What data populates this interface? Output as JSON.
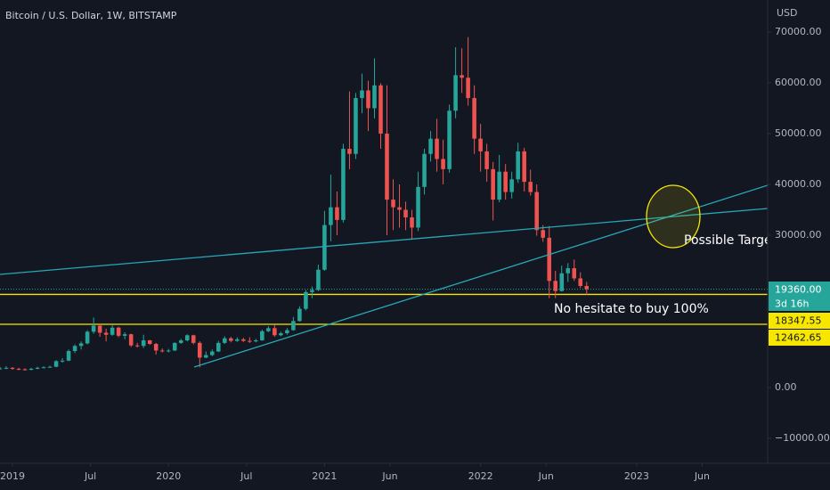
{
  "chart_data": {
    "type": "candlestick",
    "title": "Bitcoin / U.S. Dollar, 1W, BITSTAMP",
    "currency": "USD",
    "up_color": "#26a69a",
    "down_color": "#ef5350",
    "xlim": [
      2018.92,
      2023.84
    ],
    "ylim": [
      -14900,
      76300
    ],
    "xticks": [
      {
        "value": 2019,
        "label": "2019"
      },
      {
        "value": 2019.5,
        "label": "Jul"
      },
      {
        "value": 2020,
        "label": "2020"
      },
      {
        "value": 2020.5,
        "label": "Jul"
      },
      {
        "value": 2021,
        "label": "2021"
      },
      {
        "value": 2021.42,
        "label": "Jun"
      },
      {
        "value": 2022,
        "label": "2022"
      },
      {
        "value": 2022.42,
        "label": "Jun"
      },
      {
        "value": 2023,
        "label": "2023"
      },
      {
        "value": 2023.42,
        "label": "Jun"
      }
    ],
    "yticks": [
      {
        "value": -10000,
        "label": "−10000.00"
      },
      {
        "value": 0,
        "label": "0.00"
      },
      {
        "value": 30000,
        "label": "30000.00"
      },
      {
        "value": 40000,
        "label": "40000.00"
      },
      {
        "value": 50000,
        "label": "50000.00"
      },
      {
        "value": 60000,
        "label": "60000.00"
      },
      {
        "value": 70000,
        "label": "70000.00"
      }
    ],
    "x": [
      2018.92,
      2018.96,
      2019.0,
      2019.04,
      2019.08,
      2019.12,
      2019.16,
      2019.2,
      2019.24,
      2019.28,
      2019.32,
      2019.36,
      2019.4,
      2019.44,
      2019.48,
      2019.52,
      2019.56,
      2019.6,
      2019.64,
      2019.68,
      2019.72,
      2019.76,
      2019.8,
      2019.84,
      2019.88,
      2019.92,
      2019.96,
      2020.0,
      2020.04,
      2020.08,
      2020.12,
      2020.16,
      2020.2,
      2020.24,
      2020.28,
      2020.32,
      2020.36,
      2020.4,
      2020.44,
      2020.48,
      2020.52,
      2020.56,
      2020.6,
      2020.64,
      2020.68,
      2020.72,
      2020.76,
      2020.8,
      2020.84,
      2020.88,
      2020.92,
      2020.96,
      2021.0,
      2021.04,
      2021.08,
      2021.12,
      2021.16,
      2021.2,
      2021.24,
      2021.28,
      2021.32,
      2021.36,
      2021.4,
      2021.44,
      2021.48,
      2021.52,
      2021.56,
      2021.6,
      2021.64,
      2021.68,
      2021.72,
      2021.76,
      2021.8,
      2021.84,
      2021.88,
      2021.92,
      2021.96,
      2022.0,
      2022.04,
      2022.08,
      2022.12,
      2022.16,
      2022.2,
      2022.24,
      2022.28,
      2022.32,
      2022.36,
      2022.4,
      2022.44,
      2022.48,
      2022.52,
      2022.56,
      2022.6,
      2022.64,
      2022.68
    ],
    "open": [
      3700,
      3800,
      3900,
      3700,
      3600,
      3500,
      3700,
      3900,
      4000,
      4100,
      5200,
      5300,
      7200,
      8200,
      8700,
      11000,
      12200,
      10800,
      10400,
      11800,
      10200,
      10500,
      8300,
      8200,
      9300,
      8600,
      7300,
      7200,
      7300,
      8800,
      9300,
      10300,
      8800,
      5900,
      6400,
      7100,
      8800,
      9700,
      9200,
      9500,
      9200,
      9100,
      9300,
      11100,
      11700,
      10300,
      10700,
      11300,
      13100,
      15500,
      18800,
      19200,
      23200,
      32000,
      35500,
      33000,
      47000,
      46000,
      57000,
      58500,
      55000,
      59500,
      50000,
      37000,
      35500,
      35000,
      33500,
      31500,
      39500,
      46000,
      49000,
      45000,
      43000,
      54500,
      61500,
      61000,
      57000,
      49000,
      46500,
      43000,
      37000,
      42500,
      38500,
      41000,
      46500,
      40500,
      38500,
      31000,
      29500,
      21000,
      19000,
      22500,
      23500,
      21500,
      20000
    ],
    "high": [
      4100,
      4200,
      4000,
      3900,
      3800,
      3900,
      4100,
      4200,
      4300,
      5400,
      5800,
      7500,
      8500,
      9100,
      11300,
      13800,
      12500,
      11600,
      12300,
      12000,
      10900,
      10600,
      8800,
      10400,
      9400,
      8800,
      7700,
      7600,
      8900,
      9600,
      10500,
      10400,
      9100,
      7100,
      7500,
      9200,
      10100,
      10000,
      9900,
      9800,
      9900,
      9600,
      11400,
      12100,
      12400,
      11000,
      11700,
      13900,
      16000,
      19200,
      19900,
      24200,
      34800,
      41900,
      38600,
      48000,
      58300,
      58000,
      61800,
      60400,
      64800,
      59900,
      59500,
      41000,
      40000,
      36600,
      35000,
      42500,
      47000,
      50500,
      52900,
      48800,
      55700,
      67000,
      66800,
      69000,
      59500,
      51900,
      48000,
      44400,
      45800,
      44000,
      42500,
      48200,
      47200,
      42900,
      40000,
      32000,
      31800,
      23000,
      24000,
      24500,
      25200,
      22700,
      20800
    ],
    "low": [
      3500,
      3600,
      3500,
      3400,
      3350,
      3400,
      3600,
      3800,
      3900,
      4000,
      4900,
      5200,
      6800,
      7500,
      8500,
      10600,
      10000,
      9100,
      10200,
      9900,
      9500,
      8000,
      7900,
      7800,
      8400,
      6500,
      6900,
      6900,
      7200,
      8600,
      9100,
      8500,
      4000,
      5800,
      6200,
      7000,
      8600,
      8900,
      9000,
      9000,
      8800,
      8900,
      9200,
      10900,
      10000,
      10100,
      10400,
      11200,
      13000,
      15200,
      17600,
      19000,
      23000,
      28800,
      30000,
      32500,
      43000,
      45000,
      54000,
      50500,
      53000,
      47000,
      30000,
      31000,
      31500,
      31000,
      29300,
      30800,
      38000,
      44500,
      42500,
      40000,
      42300,
      53000,
      58000,
      55500,
      46000,
      42500,
      40500,
      32900,
      36500,
      37000,
      37200,
      40300,
      38600,
      37800,
      29900,
      28700,
      17600,
      17600,
      18900,
      20800,
      21000,
      19600,
      18300
    ],
    "close": [
      3800,
      3900,
      3700,
      3600,
      3500,
      3700,
      3900,
      4000,
      4100,
      5200,
      5300,
      7200,
      8200,
      8700,
      11000,
      12200,
      10800,
      10400,
      11800,
      10200,
      10500,
      8300,
      8200,
      9300,
      8600,
      7300,
      7200,
      7300,
      8800,
      9300,
      10300,
      8800,
      5900,
      6400,
      7100,
      8800,
      9700,
      9200,
      9500,
      9200,
      9100,
      9300,
      11100,
      11700,
      10300,
      10700,
      11300,
      13100,
      15500,
      18800,
      19200,
      23200,
      32000,
      35500,
      33000,
      47000,
      46000,
      57000,
      58500,
      55000,
      59500,
      50000,
      37000,
      35500,
      35000,
      33500,
      31500,
      39500,
      46000,
      49000,
      45000,
      43000,
      54500,
      61500,
      61000,
      57000,
      49000,
      46500,
      43000,
      37000,
      42500,
      38500,
      41000,
      46500,
      40500,
      38500,
      31000,
      29500,
      21000,
      19000,
      22500,
      23500,
      21500,
      20000,
      19360
    ],
    "price_labels": [
      {
        "value": 19360,
        "label": "19360.00",
        "color": "#26a69a"
      },
      {
        "value": 18347.55,
        "label": "18347.55",
        "color": "#f7e600"
      },
      {
        "value": 12462.65,
        "label": "12462.65",
        "color": "#f7e600"
      }
    ],
    "countdown": "3d 16h",
    "annotations": [
      "Possible Target",
      "No hesitate to buy 100%"
    ]
  }
}
